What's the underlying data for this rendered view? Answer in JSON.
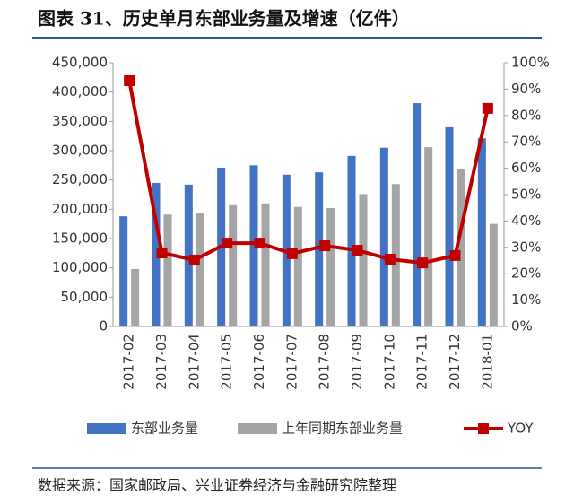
{
  "chart_data": {
    "type": "bar_line",
    "title": "图表 31、历史单月东部业务量及增速（亿件）",
    "source": "数据来源：国家邮政局、兴业证券经济与金融研究院整理",
    "categories": [
      "2017-02",
      "2017-03",
      "2017-04",
      "2017-05",
      "2017-06",
      "2017-07",
      "2017-08",
      "2017-09",
      "2017-10",
      "2017-11",
      "2017-12",
      "2018-01"
    ],
    "series": [
      {
        "name": "东部业务量",
        "type": "bar",
        "color": "#4472c4",
        "values": [
          188000,
          245000,
          242000,
          271000,
          275000,
          259000,
          263000,
          291000,
          305000,
          381000,
          340000,
          321000
        ]
      },
      {
        "name": "上年同期东部业务量",
        "type": "bar",
        "color": "#a5a5a5",
        "values": [
          98000,
          191000,
          194000,
          207000,
          210000,
          204000,
          202000,
          226000,
          243000,
          306000,
          268000,
          175000
        ]
      },
      {
        "name": "YOY",
        "type": "line",
        "axis": "y2",
        "color": "#c00000",
        "values": [
          93.2,
          27.9,
          25.2,
          31.6,
          31.6,
          27.6,
          30.6,
          28.9,
          25.5,
          24.1,
          26.9,
          82.7
        ]
      }
    ],
    "ylim": [
      0,
      450000
    ],
    "yticks": [
      0,
      {
        "value": 50000,
        "label": "50,000"
      },
      {
        "value": 100000,
        "label": "100,000"
      },
      {
        "value": 150000,
        "label": "150,000"
      },
      {
        "value": 200000,
        "label": "200,000"
      },
      {
        "value": 250000,
        "label": "250,000"
      },
      {
        "value": 300000,
        "label": "300,000"
      },
      {
        "value": 350000,
        "label": "350,000"
      },
      {
        "value": 400000,
        "label": "400,000"
      },
      {
        "value": 450000,
        "label": "450,000"
      }
    ],
    "y2lim": [
      0,
      100
    ],
    "y2ticks": [
      {
        "value": 0,
        "label": "0%"
      },
      {
        "value": 10,
        "label": "10%"
      },
      {
        "value": 20,
        "label": "20%"
      },
      {
        "value": 30,
        "label": "30%"
      },
      {
        "value": 40,
        "label": "40%"
      },
      {
        "value": 50,
        "label": "50%"
      },
      {
        "value": 60,
        "label": "60%"
      },
      {
        "value": 70,
        "label": "70%"
      },
      {
        "value": 80,
        "label": "80%"
      },
      {
        "value": 90,
        "label": "90%"
      },
      {
        "value": 100,
        "label": "100%"
      }
    ],
    "grid": false
  }
}
